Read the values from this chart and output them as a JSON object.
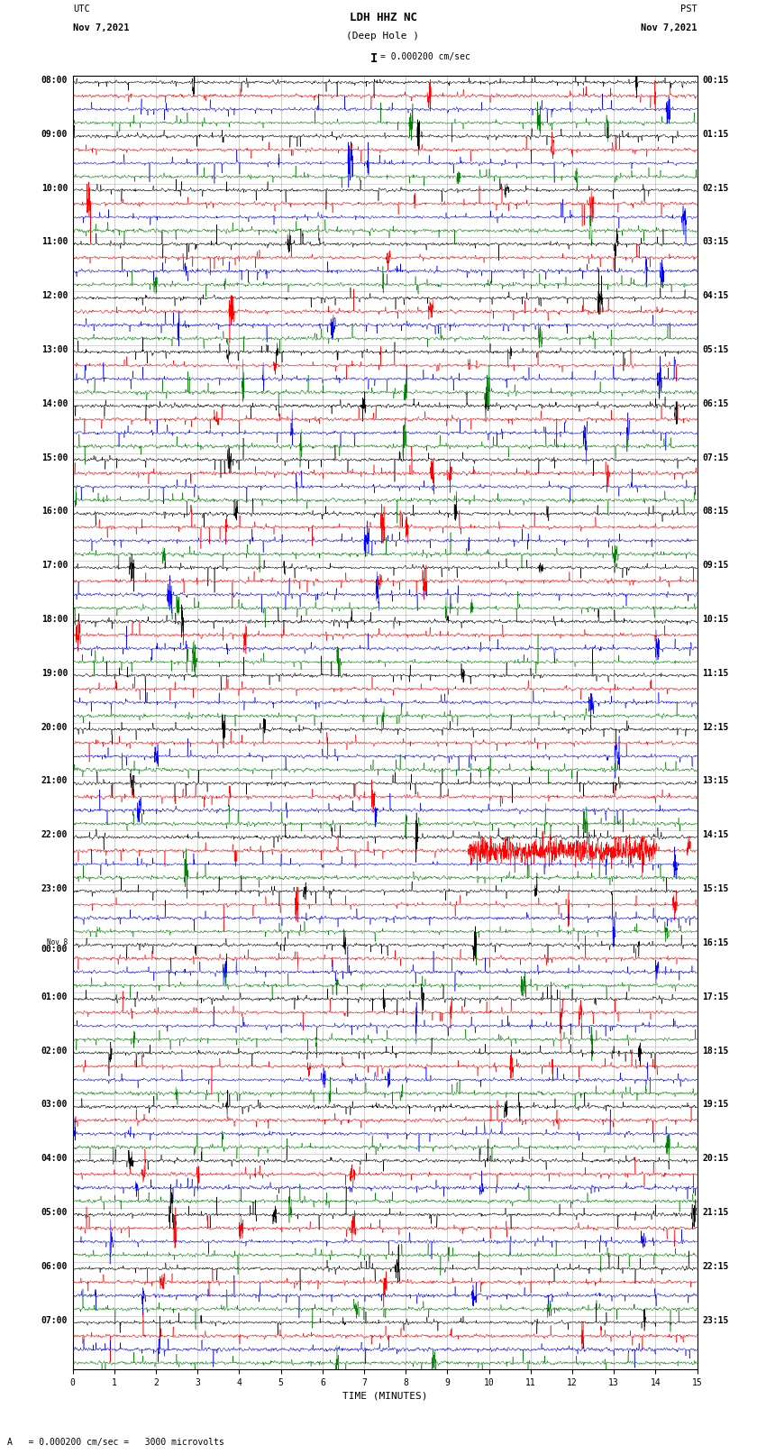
{
  "title_line1": "LDH HHZ NC",
  "title_line2": "(Deep Hole )",
  "scale_text": "= 0.000200 cm/sec",
  "bottom_text": "A   = 0.000200 cm/sec =   3000 microvolts",
  "utc_label": "UTC",
  "utc_date": "Nov 7,2021",
  "pst_label": "PST",
  "pst_date": "Nov 7,2021",
  "xlabel": "TIME (MINUTES)",
  "xmin": 0,
  "xmax": 15,
  "xticks": [
    0,
    1,
    2,
    3,
    4,
    5,
    6,
    7,
    8,
    9,
    10,
    11,
    12,
    13,
    14,
    15
  ],
  "background_color": "#ffffff",
  "trace_colors": [
    "black",
    "red",
    "blue",
    "green"
  ],
  "utc_times": [
    "08:00",
    "09:00",
    "10:00",
    "11:00",
    "12:00",
    "13:00",
    "14:00",
    "15:00",
    "16:00",
    "17:00",
    "18:00",
    "19:00",
    "20:00",
    "21:00",
    "22:00",
    "23:00",
    "00:00",
    "01:00",
    "02:00",
    "03:00",
    "04:00",
    "05:00",
    "06:00",
    "07:00"
  ],
  "utc_times_special": [
    16
  ],
  "nov8_label": "Nov 8",
  "pst_times": [
    "00:15",
    "01:15",
    "02:15",
    "03:15",
    "04:15",
    "05:15",
    "06:15",
    "07:15",
    "08:15",
    "09:15",
    "10:15",
    "11:15",
    "12:15",
    "13:15",
    "14:15",
    "15:15",
    "16:15",
    "17:15",
    "18:15",
    "19:15",
    "20:15",
    "21:15",
    "22:15",
    "23:15"
  ],
  "num_hours": 24,
  "traces_per_hour": 4,
  "fig_width": 8.5,
  "fig_height": 16.13,
  "dpi": 100,
  "earthquake_hour": 14,
  "earthquake_trace": 0,
  "earthquake_xstart": 9.5,
  "earthquake_xend": 14.0
}
